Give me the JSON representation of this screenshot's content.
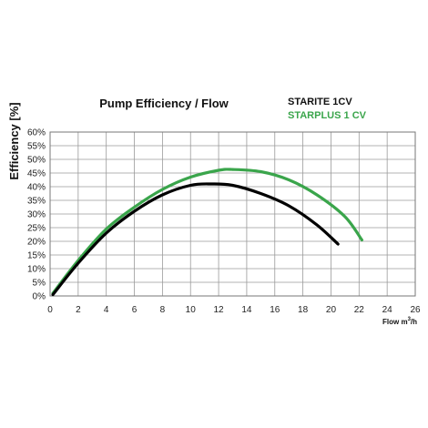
{
  "chart_data": {
    "type": "line",
    "title": "Pump  Efficiency /  Flow",
    "ylabel": "Efficiency [%]",
    "xlabel": "Flow m",
    "xlabel_sup": "3",
    "xlabel_suffix": "/h",
    "xlim": [
      0,
      26
    ],
    "ylim": [
      0,
      60
    ],
    "x_ticks": [
      0,
      2,
      4,
      6,
      8,
      10,
      12,
      14,
      16,
      18,
      20,
      22,
      24,
      26
    ],
    "y_ticks": [
      0,
      5,
      10,
      15,
      20,
      25,
      30,
      35,
      40,
      45,
      50,
      55,
      60
    ],
    "y_tick_suffix": "%",
    "grid": true,
    "legend_position": "top-right",
    "series": [
      {
        "name": "STARITE 1CV",
        "color": "#000000",
        "x": [
          0.2,
          2,
          4,
          6,
          8,
          10,
          11.5,
          13,
          15,
          17,
          19,
          20.5
        ],
        "y": [
          0.5,
          12,
          23,
          31,
          37,
          40.5,
          41,
          40.5,
          37.5,
          33,
          26,
          19
        ]
      },
      {
        "name": "STARPLUS 1 CV",
        "color": "#3aa54b",
        "x": [
          0.2,
          2,
          4,
          6,
          8,
          10,
          12,
          13,
          15,
          17,
          19,
          21,
          22.2
        ],
        "y": [
          1,
          13,
          24.5,
          32.5,
          39,
          43.5,
          46,
          46.3,
          45.5,
          42.5,
          37,
          29,
          20.5
        ]
      }
    ]
  }
}
